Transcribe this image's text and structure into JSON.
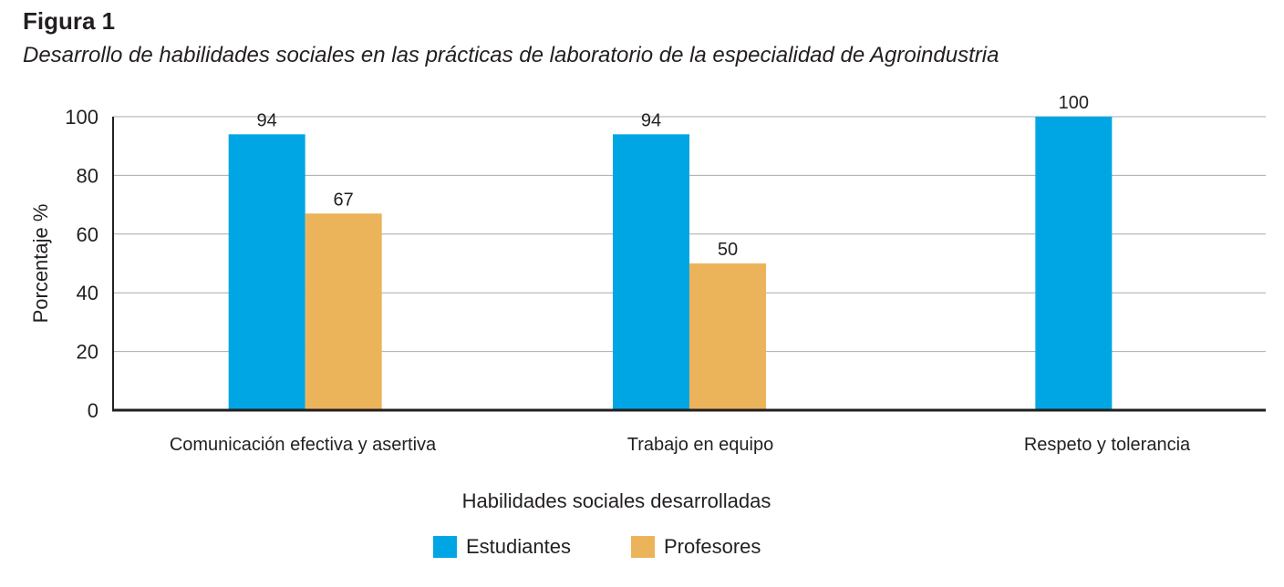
{
  "figure": {
    "label": "Figura 1",
    "title": "Desarrollo de habilidades sociales en las prácticas de laboratorio de la especialidad de Agroindustria"
  },
  "colors": {
    "estudiantes": "#00a6e4",
    "profesores": "#ecb45a",
    "axis": "#231f20",
    "grid": "#a7a9ac",
    "text": "#231f20"
  },
  "legend": [
    {
      "label": "Estudiantes",
      "color_key": "estudiantes"
    },
    {
      "label": "Profesores",
      "color_key": "profesores"
    }
  ],
  "chart_data": {
    "type": "bar",
    "title": "Desarrollo de habilidades sociales en las prácticas de laboratorio de la especialidad de Agroindustria",
    "xlabel": "Habilidades sociales desarrolladas",
    "ylabel": "Porcentaje %",
    "ylim": [
      0,
      100
    ],
    "yticks": [
      0,
      20,
      40,
      60,
      80,
      100
    ],
    "grid": true,
    "legend_position": "bottom-center",
    "categories": [
      "Comunicación efectiva y asertiva",
      "Trabajo en equipo",
      "Respeto y tolerancia"
    ],
    "series": [
      {
        "name": "Estudiantes",
        "values": [
          94,
          94,
          100
        ]
      },
      {
        "name": "Profesores",
        "values": [
          67,
          50,
          null
        ]
      }
    ]
  }
}
